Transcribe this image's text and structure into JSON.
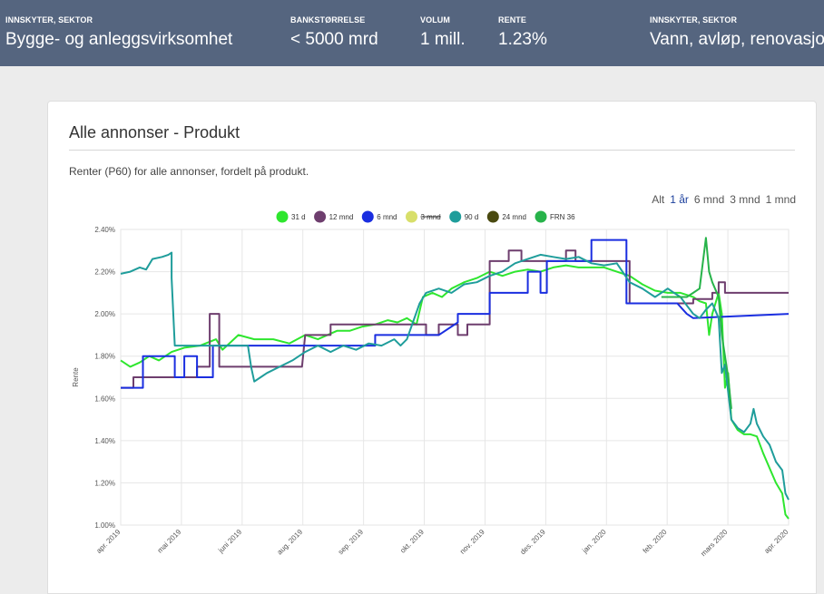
{
  "ticker": [
    {
      "label": "INNSKYTER, SEKTOR",
      "value": "Bygge- og anleggsvirksomhet"
    },
    {
      "label": "BANKSTØRRELSE",
      "value": "< 5000 mrd"
    },
    {
      "label": "VOLUM",
      "value": "1 mill."
    },
    {
      "label": "RENTE",
      "value": "1.23%"
    },
    {
      "label": "INNSKYTER, SEKTOR",
      "value": "Vann, avløp, renovasjon"
    }
  ],
  "card": {
    "title": "Alle annonser - Produkt",
    "description": "Renter (P60) for alle annonser, fordelt på produkt."
  },
  "range_selector": [
    "Alt",
    "1 år",
    "6 mnd",
    "3 mnd",
    "1 mnd"
  ],
  "range_selected": "1 år",
  "chart_data": {
    "type": "line",
    "ylabel": "Rente",
    "ylim": [
      1.0,
      2.4
    ],
    "yticks": [
      "2.40%",
      "2.20%",
      "2.00%",
      "1.80%",
      "1.60%",
      "1.40%",
      "1.20%",
      "1.00%"
    ],
    "xticks": [
      "apr. 2019",
      "mai 2019",
      "juni 2019",
      "aug. 2019",
      "sep. 2019",
      "okt. 2019",
      "nov. 2019",
      "des. 2019",
      "jan. 2020",
      "feb. 2020",
      "mars 2020",
      "apr. 2020"
    ],
    "grid": true,
    "legend": "top-center",
    "series": [
      {
        "name": "31 d",
        "color": "#2ee62e",
        "hidden": false,
        "points": [
          [
            0,
            1.78
          ],
          [
            3,
            1.75
          ],
          [
            6,
            1.77
          ],
          [
            9,
            1.8
          ],
          [
            12,
            1.78
          ],
          [
            16,
            1.82
          ],
          [
            20,
            1.84
          ],
          [
            25,
            1.85
          ],
          [
            30,
            1.88
          ],
          [
            32,
            1.83
          ],
          [
            37,
            1.9
          ],
          [
            42,
            1.88
          ],
          [
            48,
            1.88
          ],
          [
            53,
            1.86
          ],
          [
            58,
            1.9
          ],
          [
            62,
            1.88
          ],
          [
            65,
            1.9
          ],
          [
            68,
            1.92
          ],
          [
            72,
            1.92
          ],
          [
            76,
            1.94
          ],
          [
            80,
            1.95
          ],
          [
            84,
            1.97
          ],
          [
            87,
            1.96
          ],
          [
            90,
            1.98
          ],
          [
            93,
            1.95
          ],
          [
            95,
            2.08
          ],
          [
            98,
            2.1
          ],
          [
            101,
            2.08
          ],
          [
            104,
            2.12
          ],
          [
            108,
            2.15
          ],
          [
            112,
            2.17
          ],
          [
            116,
            2.2
          ],
          [
            120,
            2.18
          ],
          [
            124,
            2.2
          ],
          [
            128,
            2.21
          ],
          [
            132,
            2.2
          ],
          [
            136,
            2.22
          ],
          [
            140,
            2.23
          ],
          [
            144,
            2.22
          ],
          [
            148,
            2.22
          ],
          [
            152,
            2.22
          ],
          [
            156,
            2.2
          ],
          [
            160,
            2.18
          ],
          [
            164,
            2.14
          ],
          [
            168,
            2.11
          ],
          [
            172,
            2.1
          ],
          [
            176,
            2.1
          ],
          [
            180,
            2.08
          ],
          [
            182,
            2.06
          ],
          [
            184,
            2.05
          ],
          [
            185,
            1.9
          ],
          [
            186,
            2.0
          ],
          [
            187,
            2.05
          ],
          [
            188,
            2.1
          ],
          [
            189,
            2.0
          ],
          [
            190,
            1.65
          ],
          [
            191,
            1.72
          ],
          [
            192,
            1.5
          ],
          [
            194,
            1.45
          ],
          [
            196,
            1.43
          ],
          [
            198,
            1.43
          ],
          [
            200,
            1.42
          ],
          [
            202,
            1.34
          ],
          [
            204,
            1.27
          ],
          [
            206,
            1.2
          ],
          [
            208,
            1.15
          ],
          [
            209,
            1.05
          ],
          [
            210,
            1.03
          ]
        ]
      },
      {
        "name": "12 mnd",
        "color": "#6e3e6e",
        "hidden": false,
        "points": [
          [
            0,
            1.65
          ],
          [
            4,
            1.65
          ],
          [
            4,
            1.7
          ],
          [
            24,
            1.7
          ],
          [
            24,
            1.75
          ],
          [
            28,
            1.75
          ],
          [
            28,
            2.0
          ],
          [
            31,
            2.0
          ],
          [
            31,
            1.75
          ],
          [
            57,
            1.75
          ],
          [
            58,
            1.9
          ],
          [
            66,
            1.9
          ],
          [
            66,
            1.95
          ],
          [
            96,
            1.95
          ],
          [
            96,
            1.9
          ],
          [
            100,
            1.9
          ],
          [
            100,
            1.95
          ],
          [
            106,
            1.95
          ],
          [
            106,
            1.9
          ],
          [
            109,
            1.9
          ],
          [
            109,
            1.95
          ],
          [
            116,
            1.95
          ],
          [
            116,
            2.25
          ],
          [
            122,
            2.25
          ],
          [
            122,
            2.3
          ],
          [
            126,
            2.3
          ],
          [
            126,
            2.25
          ],
          [
            140,
            2.25
          ],
          [
            140,
            2.3
          ],
          [
            143,
            2.3
          ],
          [
            143,
            2.25
          ],
          [
            160,
            2.25
          ],
          [
            160,
            2.05
          ],
          [
            180,
            2.05
          ],
          [
            180,
            2.07
          ],
          [
            186,
            2.07
          ],
          [
            186,
            2.1
          ],
          [
            188,
            2.1
          ],
          [
            188,
            2.15
          ],
          [
            190,
            2.15
          ],
          [
            190,
            2.1
          ],
          [
            210,
            2.1
          ]
        ]
      },
      {
        "name": "6 mnd",
        "color": "#1a2ee0",
        "hidden": false,
        "points": [
          [
            0,
            1.65
          ],
          [
            7,
            1.65
          ],
          [
            7,
            1.8
          ],
          [
            17,
            1.8
          ],
          [
            17,
            1.7
          ],
          [
            20,
            1.7
          ],
          [
            20,
            1.8
          ],
          [
            24,
            1.8
          ],
          [
            24,
            1.7
          ],
          [
            29,
            1.7
          ],
          [
            29,
            1.85
          ],
          [
            80,
            1.85
          ],
          [
            80,
            1.9
          ],
          [
            100,
            1.9
          ],
          [
            106,
            1.96
          ],
          [
            106,
            2.0
          ],
          [
            116,
            2.0
          ],
          [
            116,
            2.1
          ],
          [
            128,
            2.1
          ],
          [
            128,
            2.2
          ],
          [
            132,
            2.2
          ],
          [
            132,
            2.1
          ],
          [
            134,
            2.1
          ],
          [
            134,
            2.25
          ],
          [
            148,
            2.25
          ],
          [
            148,
            2.35
          ],
          [
            159,
            2.35
          ],
          [
            159,
            2.05
          ],
          [
            175,
            2.05
          ],
          [
            178,
            2.0
          ],
          [
            180,
            1.98
          ],
          [
            210,
            2.0
          ]
        ]
      },
      {
        "name": "3 mnd",
        "color": "#d8df6a",
        "hidden": true,
        "points": []
      },
      {
        "name": "90 d",
        "color": "#1f9d9b",
        "hidden": false,
        "points": [
          [
            0,
            2.19
          ],
          [
            3,
            2.2
          ],
          [
            6,
            2.22
          ],
          [
            8,
            2.21
          ],
          [
            10,
            2.26
          ],
          [
            13,
            2.27
          ],
          [
            15,
            2.28
          ],
          [
            16,
            2.29
          ],
          [
            16,
            2.17
          ],
          [
            17,
            1.85
          ],
          [
            25,
            1.85
          ],
          [
            30,
            1.85
          ],
          [
            40,
            1.85
          ],
          [
            41,
            1.75
          ],
          [
            42,
            1.68
          ],
          [
            44,
            1.7
          ],
          [
            46,
            1.72
          ],
          [
            50,
            1.75
          ],
          [
            54,
            1.78
          ],
          [
            58,
            1.82
          ],
          [
            62,
            1.85
          ],
          [
            66,
            1.82
          ],
          [
            70,
            1.85
          ],
          [
            74,
            1.83
          ],
          [
            78,
            1.86
          ],
          [
            82,
            1.85
          ],
          [
            86,
            1.88
          ],
          [
            88,
            1.85
          ],
          [
            90,
            1.88
          ],
          [
            94,
            2.05
          ],
          [
            96,
            2.1
          ],
          [
            100,
            2.12
          ],
          [
            104,
            2.1
          ],
          [
            108,
            2.14
          ],
          [
            112,
            2.15
          ],
          [
            116,
            2.18
          ],
          [
            120,
            2.2
          ],
          [
            124,
            2.24
          ],
          [
            128,
            2.26
          ],
          [
            132,
            2.28
          ],
          [
            136,
            2.27
          ],
          [
            140,
            2.26
          ],
          [
            144,
            2.27
          ],
          [
            148,
            2.24
          ],
          [
            152,
            2.23
          ],
          [
            156,
            2.24
          ],
          [
            160,
            2.15
          ],
          [
            164,
            2.12
          ],
          [
            168,
            2.08
          ],
          [
            170,
            2.1
          ],
          [
            172,
            2.12
          ],
          [
            174,
            2.1
          ],
          [
            176,
            2.08
          ],
          [
            178,
            2.04
          ],
          [
            180,
            2.0
          ],
          [
            182,
            1.98
          ],
          [
            184,
            2.02
          ],
          [
            186,
            2.05
          ],
          [
            188,
            1.98
          ],
          [
            189,
            1.72
          ],
          [
            190,
            1.76
          ],
          [
            192,
            1.5
          ],
          [
            194,
            1.46
          ],
          [
            196,
            1.44
          ],
          [
            198,
            1.48
          ],
          [
            199,
            1.55
          ],
          [
            200,
            1.48
          ],
          [
            202,
            1.42
          ],
          [
            204,
            1.38
          ],
          [
            206,
            1.3
          ],
          [
            208,
            1.26
          ],
          [
            209,
            1.15
          ],
          [
            210,
            1.12
          ]
        ]
      },
      {
        "name": "24 mnd",
        "color": "#4a4a10",
        "hidden": false,
        "points": []
      },
      {
        "name": "FRN 36",
        "color": "#27b34a",
        "hidden": false,
        "points": [
          [
            170,
            2.08
          ],
          [
            174,
            2.08
          ],
          [
            178,
            2.08
          ],
          [
            180,
            2.1
          ],
          [
            182,
            2.12
          ],
          [
            184,
            2.36
          ],
          [
            185,
            2.2
          ],
          [
            186,
            2.15
          ],
          [
            188,
            2.08
          ],
          [
            189,
            1.9
          ],
          [
            190,
            1.8
          ],
          [
            191,
            1.7
          ],
          [
            192,
            1.55
          ]
        ]
      }
    ]
  }
}
